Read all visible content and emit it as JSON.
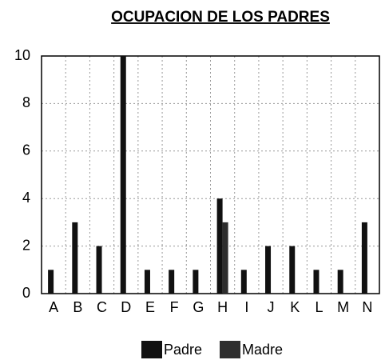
{
  "chart_data": {
    "type": "bar",
    "title": "OCUPACION DE LOS PADRES",
    "categories": [
      "A",
      "B",
      "C",
      "D",
      "E",
      "F",
      "G",
      "H",
      "I",
      "J",
      "K",
      "L",
      "M",
      "N"
    ],
    "series": [
      {
        "name": "Padre",
        "color": "#111111",
        "values": [
          1,
          3,
          2,
          10,
          1,
          1,
          1,
          4,
          1,
          2,
          2,
          1,
          1,
          3
        ]
      },
      {
        "name": "Madre",
        "color": "#2e2e2e",
        "values": [
          0,
          0,
          0,
          0,
          0,
          0,
          0,
          3,
          0,
          0,
          0,
          0,
          0,
          0
        ]
      }
    ],
    "ylim": [
      0,
      10
    ],
    "yticks": [
      0,
      2,
      4,
      6,
      8,
      10
    ],
    "grid": true
  }
}
